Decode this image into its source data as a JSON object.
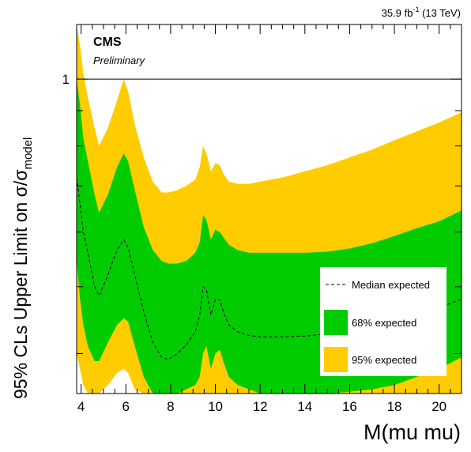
{
  "chart_data": {
    "type": "area",
    "title": "",
    "experiment": "CMS",
    "status": "Preliminary",
    "lumi_text": "35.9 fb",
    "lumi_sup": "-1",
    "lumi_energy": " (13 TeV)",
    "xlabel": "M(mu mu)",
    "ylabel_main": "95% CLs Upper Limit on σ/σ",
    "ylabel_sub": "model",
    "xlim": [
      3.8,
      21.0
    ],
    "ylim_log": [
      0.35,
      1.2
    ],
    "y_scale": "log",
    "x_ticks": [
      4,
      6,
      8,
      10,
      12,
      14,
      16,
      18,
      20
    ],
    "x_tick_labels": [
      "4",
      "6",
      "8",
      "10",
      "12",
      "14",
      "16",
      "18",
      "20"
    ],
    "y_tick_labels": [
      {
        "value": 1,
        "label": "1"
      }
    ],
    "reference_line": 1,
    "legend_position": "bottom-right",
    "colors": {
      "band68": "#00cc00",
      "band95": "#ffcc00",
      "median": "#000000"
    },
    "series": [
      {
        "name": "Median expected",
        "style": "dashed",
        "x": [
          3.8,
          3.95,
          4.1,
          4.3,
          4.6,
          4.8,
          5.2,
          5.6,
          5.9,
          6.1,
          6.4,
          6.8,
          7.2,
          7.6,
          7.9,
          8.3,
          8.7,
          9.1,
          9.3,
          9.45,
          9.6,
          9.8,
          10.0,
          10.2,
          10.35,
          10.6,
          11.0,
          11.5,
          12.0,
          13.0,
          14.0,
          15.0,
          16.0,
          17.0,
          18.0,
          19.0,
          20.0,
          21.0
        ],
        "y": [
          0.72,
          0.66,
          0.6,
          0.56,
          0.5,
          0.485,
          0.52,
          0.565,
          0.585,
          0.57,
          0.52,
          0.46,
          0.415,
          0.395,
          0.392,
          0.4,
          0.412,
          0.43,
          0.455,
          0.5,
          0.495,
          0.455,
          0.48,
          0.478,
          0.46,
          0.44,
          0.43,
          0.425,
          0.423,
          0.423,
          0.424,
          0.427,
          0.432,
          0.44,
          0.448,
          0.457,
          0.466,
          0.48
        ]
      },
      {
        "name": "68% expected",
        "lower": [
          0.55,
          0.48,
          0.44,
          0.41,
          0.39,
          0.39,
          0.415,
          0.44,
          0.45,
          0.445,
          0.41,
          0.37,
          0.35,
          0.34,
          0.34,
          0.35,
          0.355,
          0.36,
          0.37,
          0.4,
          0.41,
          0.38,
          0.4,
          0.405,
          0.39,
          0.37,
          0.36,
          0.355,
          0.35,
          0.35,
          0.35,
          0.35,
          0.352,
          0.355,
          0.36,
          0.37,
          0.38,
          0.395
        ],
        "upper": [
          1.0,
          0.92,
          0.82,
          0.76,
          0.68,
          0.64,
          0.68,
          0.745,
          0.78,
          0.76,
          0.69,
          0.61,
          0.565,
          0.545,
          0.54,
          0.54,
          0.545,
          0.56,
          0.58,
          0.635,
          0.625,
          0.585,
          0.605,
          0.6,
          0.59,
          0.575,
          0.565,
          0.56,
          0.56,
          0.56,
          0.56,
          0.562,
          0.568,
          0.578,
          0.592,
          0.608,
          0.622,
          0.645
        ]
      },
      {
        "name": "95% expected",
        "lower": [
          0.4,
          0.38,
          0.36,
          0.35,
          0.35,
          0.35,
          0.36,
          0.375,
          0.38,
          0.375,
          0.355,
          0.35,
          0.35,
          0.35,
          0.35,
          0.35,
          0.35,
          0.35,
          0.35,
          0.35,
          0.35,
          0.35,
          0.35,
          0.35,
          0.35,
          0.35,
          0.35,
          0.35,
          0.35,
          0.35,
          0.35,
          0.35,
          0.35,
          0.35,
          0.35,
          0.35,
          0.35,
          0.35
        ],
        "upper": [
          1.2,
          1.12,
          1.02,
          0.94,
          0.85,
          0.8,
          0.85,
          0.93,
          1.0,
          0.96,
          0.86,
          0.77,
          0.71,
          0.685,
          0.685,
          0.69,
          0.7,
          0.715,
          0.745,
          0.8,
          0.78,
          0.735,
          0.755,
          0.75,
          0.73,
          0.71,
          0.705,
          0.705,
          0.71,
          0.72,
          0.735,
          0.75,
          0.77,
          0.79,
          0.815,
          0.84,
          0.865,
          0.895
        ]
      }
    ],
    "legend": [
      {
        "label": "Median expected",
        "kind": "dashed-line"
      },
      {
        "label": "68% expected",
        "kind": "fill-green"
      },
      {
        "label": "95% expected",
        "kind": "fill-yellow"
      }
    ]
  }
}
